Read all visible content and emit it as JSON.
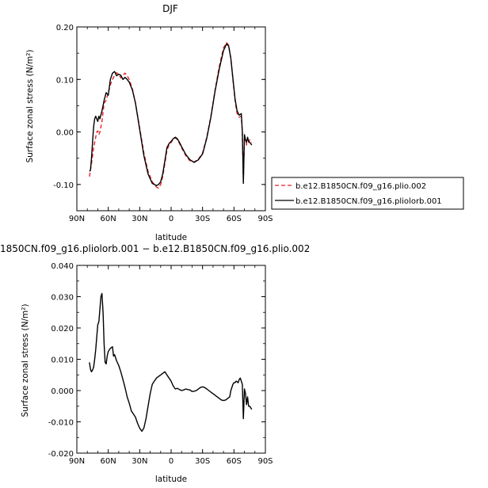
{
  "chart_data": [
    {
      "type": "line",
      "title": "DJF",
      "xlabel": "latitude",
      "ylabel": "Surface zonal stress (N/m²)",
      "xlim": [
        90,
        -90
      ],
      "ylim": [
        -0.15,
        0.2
      ],
      "x_tick_values": [
        90,
        60,
        30,
        0,
        -30,
        -60,
        -90
      ],
      "x_tick_labels": [
        "90N",
        "60N",
        "30N",
        "0",
        "30S",
        "60S",
        "90S"
      ],
      "y_tick_values": [
        0.2,
        0.1,
        0.0,
        -0.1
      ],
      "y_tick_labels": [
        "0.20",
        "0.10",
        "0.00",
        "-0.10"
      ],
      "legend_position": "right",
      "series": [
        {
          "name": "b.e12.B1850CN.f09_g16.plio.002",
          "color": "#e8212a",
          "dash": "dashed",
          "x": [
            78,
            76,
            74,
            72,
            71,
            70,
            69,
            68,
            66,
            64,
            62,
            60,
            58,
            56,
            54,
            52,
            50,
            48,
            46,
            44,
            42,
            40,
            37,
            34,
            30,
            26,
            22,
            18,
            14,
            12,
            10,
            8,
            6,
            4,
            2,
            0,
            -2,
            -4,
            -6,
            -8,
            -10,
            -14,
            -18,
            -22,
            -26,
            -30,
            -34,
            -38,
            -42,
            -46,
            -50,
            -53,
            -55,
            -57,
            -59,
            -61,
            -63,
            -65,
            -67,
            -68,
            -69,
            -70,
            -71,
            -72,
            -73,
            -74,
            -75,
            -76,
            -77
          ],
          "y": [
            -0.085,
            -0.06,
            -0.03,
            -0.01,
            0.0,
            0.002,
            -0.005,
            0.0,
            0.02,
            0.055,
            0.06,
            0.075,
            0.09,
            0.1,
            0.108,
            0.113,
            0.109,
            0.103,
            0.108,
            0.112,
            0.107,
            0.1,
            0.082,
            0.055,
            0.008,
            -0.04,
            -0.075,
            -0.095,
            -0.105,
            -0.107,
            -0.1,
            -0.085,
            -0.06,
            -0.035,
            -0.025,
            -0.02,
            -0.014,
            -0.011,
            -0.015,
            -0.022,
            -0.03,
            -0.045,
            -0.055,
            -0.057,
            -0.052,
            -0.04,
            -0.01,
            0.03,
            0.08,
            0.125,
            0.16,
            0.17,
            0.165,
            0.14,
            0.1,
            0.06,
            0.035,
            0.028,
            0.03,
            0.0,
            -0.09,
            -0.01,
            -0.015,
            -0.025,
            -0.012,
            -0.02,
            -0.015,
            -0.018,
            -0.02
          ]
        },
        {
          "name": "b.e12.B1850CN.f09_g16.pliolorb.001",
          "color": "#000000",
          "dash": "solid",
          "x": [
            78,
            77,
            76,
            75,
            74,
            73,
            72,
            71,
            70,
            69,
            68,
            66,
            64,
            62,
            60,
            58,
            56,
            54,
            52,
            50,
            48,
            46,
            44,
            42,
            40,
            37,
            34,
            30,
            26,
            22,
            18,
            14,
            12,
            10,
            8,
            6,
            4,
            2,
            0,
            -2,
            -4,
            -6,
            -8,
            -10,
            -14,
            -18,
            -22,
            -26,
            -30,
            -34,
            -38,
            -42,
            -46,
            -50,
            -53,
            -55,
            -57,
            -59,
            -61,
            -63,
            -65,
            -67,
            -68,
            -69,
            -70,
            -71,
            -72,
            -73,
            -74,
            -75,
            -76,
            -77
          ],
          "y": [
            -0.075,
            -0.073,
            -0.05,
            -0.02,
            0.01,
            0.025,
            0.03,
            0.025,
            0.02,
            0.03,
            0.025,
            0.04,
            0.06,
            0.075,
            0.07,
            0.1,
            0.112,
            0.115,
            0.107,
            0.11,
            0.108,
            0.1,
            0.104,
            0.1,
            0.095,
            0.08,
            0.055,
            0.005,
            -0.045,
            -0.08,
            -0.098,
            -0.102,
            -0.1,
            -0.095,
            -0.08,
            -0.055,
            -0.03,
            -0.022,
            -0.018,
            -0.013,
            -0.01,
            -0.013,
            -0.02,
            -0.028,
            -0.043,
            -0.053,
            -0.058,
            -0.053,
            -0.042,
            -0.012,
            0.028,
            0.078,
            0.12,
            0.155,
            0.168,
            0.163,
            0.14,
            0.102,
            0.063,
            0.04,
            0.032,
            0.035,
            0.0,
            -0.098,
            -0.005,
            -0.015,
            -0.02,
            -0.01,
            -0.018,
            -0.02,
            -0.022,
            -0.025
          ]
        }
      ]
    },
    {
      "type": "line",
      "title": "1850CN.f09_g16.pliolorb.001 − b.e12.B1850CN.f09_g16.plio.002",
      "xlabel": "latitude",
      "ylabel": "Surface zonal stress (N/m²)",
      "xlim": [
        90,
        -90
      ],
      "ylim": [
        -0.02,
        0.04
      ],
      "x_tick_values": [
        90,
        60,
        30,
        0,
        -30,
        -60,
        -90
      ],
      "x_tick_labels": [
        "90N",
        "60N",
        "30N",
        "0",
        "30S",
        "60S",
        "90S"
      ],
      "y_tick_values": [
        0.04,
        0.03,
        0.02,
        0.01,
        0.0,
        -0.01,
        -0.02
      ],
      "y_tick_labels": [
        "0.040",
        "0.030",
        "0.020",
        "0.010",
        "0.000",
        "-0.010",
        "-0.020"
      ],
      "series": [
        {
          "color": "#000000",
          "dash": "solid",
          "x": [
            78,
            77,
            76,
            75,
            74,
            73,
            72,
            71,
            70,
            69,
            68,
            67,
            66,
            65,
            64,
            63,
            62,
            61,
            60,
            59,
            58,
            56,
            55,
            54,
            52,
            50,
            48,
            46,
            44,
            42,
            40,
            38,
            36,
            34,
            32,
            30,
            28,
            26,
            24,
            22,
            20,
            18,
            16,
            14,
            12,
            10,
            8,
            6,
            4,
            2,
            0,
            -2,
            -4,
            -6,
            -8,
            -10,
            -12,
            -14,
            -16,
            -18,
            -20,
            -22,
            -24,
            -26,
            -28,
            -30,
            -32,
            -34,
            -36,
            -38,
            -40,
            -42,
            -44,
            -46,
            -48,
            -50,
            -52,
            -54,
            -56,
            -57,
            -58,
            -59,
            -60,
            -61,
            -62,
            -63,
            -64,
            -65,
            -66,
            -67,
            -68,
            -69,
            -70,
            -71,
            -72,
            -73,
            -74,
            -75,
            -76,
            -77
          ],
          "y": [
            0.009,
            0.0068,
            0.006,
            0.0065,
            0.0075,
            0.01,
            0.013,
            0.017,
            0.021,
            0.022,
            0.026,
            0.03,
            0.031,
            0.025,
            0.015,
            0.009,
            0.0085,
            0.011,
            0.0125,
            0.013,
            0.0135,
            0.014,
            0.011,
            0.0115,
            0.0095,
            0.008,
            0.006,
            0.0035,
            0.001,
            -0.002,
            -0.004,
            -0.0065,
            -0.0075,
            -0.0085,
            -0.0105,
            -0.012,
            -0.013,
            -0.012,
            -0.009,
            -0.005,
            -0.001,
            0.002,
            0.003,
            0.004,
            0.0045,
            0.005,
            0.0055,
            0.006,
            0.005,
            0.004,
            0.003,
            0.0015,
            0.0005,
            0.0007,
            0.0003,
            0.0,
            0.0002,
            0.0005,
            0.0003,
            0.0002,
            -0.0003,
            -0.0002,
            0.0,
            0.0005,
            0.001,
            0.0012,
            0.001,
            0.0005,
            0.0,
            -0.0005,
            -0.001,
            -0.0015,
            -0.002,
            -0.0025,
            -0.003,
            -0.0032,
            -0.003,
            -0.0025,
            -0.002,
            0.0,
            0.001,
            0.002,
            0.0025,
            0.0025,
            0.003,
            0.0028,
            0.0025,
            0.0035,
            0.004,
            0.003,
            0.002,
            -0.009,
            0.0005,
            -0.001,
            -0.0045,
            -0.002,
            -0.005,
            -0.005,
            -0.0055,
            -0.006
          ]
        }
      ]
    }
  ]
}
